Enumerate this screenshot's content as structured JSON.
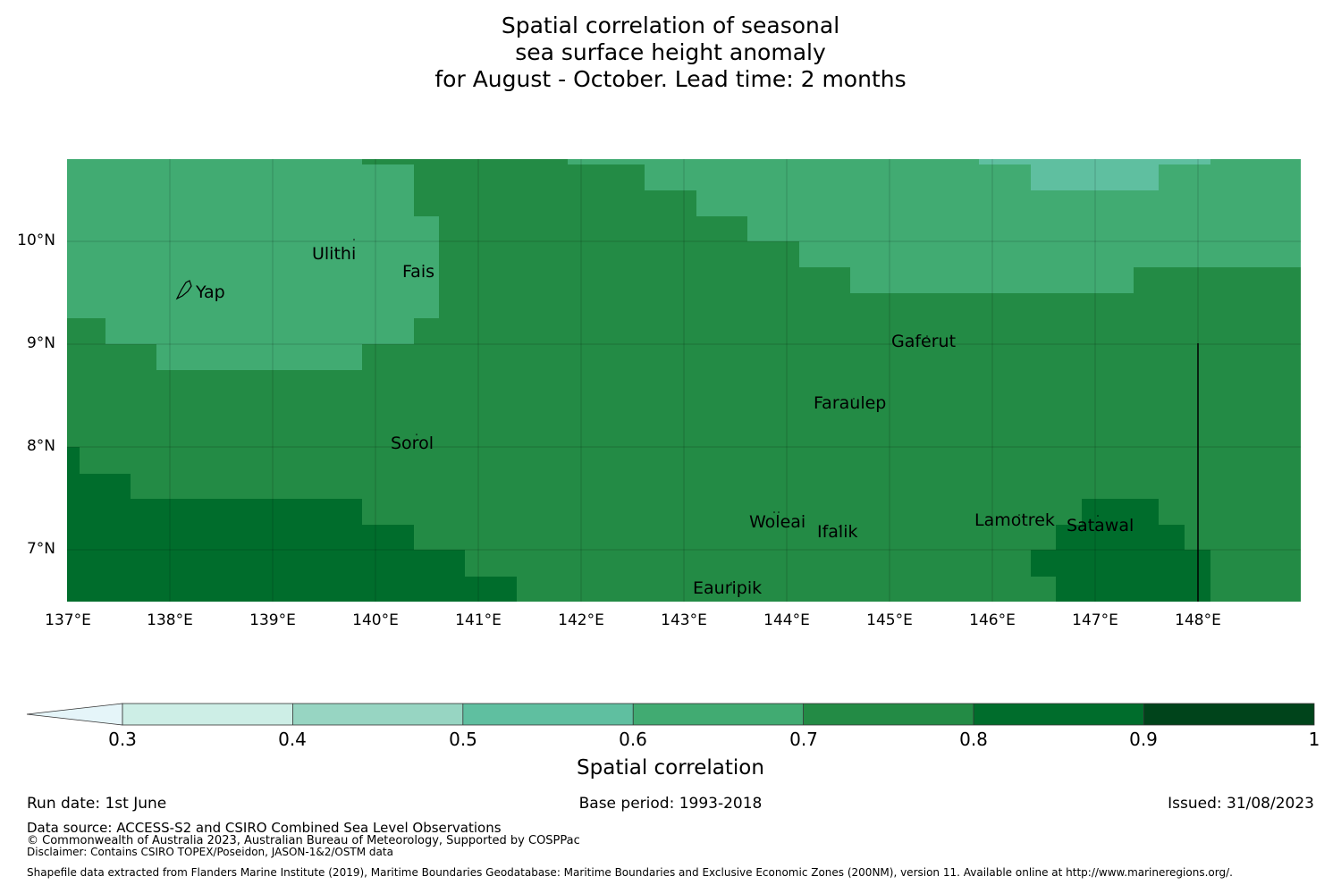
{
  "title": {
    "line1": "Spatial correlation of seasonal",
    "line2": "sea surface height anomaly",
    "line3": "for August - October. Lead time: 2 months"
  },
  "map": {
    "lat_ticks": [
      "10°N",
      "9°N",
      "8°N",
      "7°N"
    ],
    "lon_ticks": [
      "137°E",
      "138°E",
      "139°E",
      "140°E",
      "141°E",
      "142°E",
      "143°E",
      "144°E",
      "145°E",
      "146°E",
      "147°E",
      "148°E"
    ],
    "places": [
      "Ulithi",
      "Fais",
      "Yap",
      "Gaferut",
      "Faraulep",
      "Sorol",
      "Woleai",
      "Ifalik",
      "Lamotrek",
      "Satawal",
      "Eauripik"
    ],
    "colors": {
      "c05": "#5fbfa0",
      "c06": "#41ab72",
      "c07": "#238b45",
      "c08": "#006d2c",
      "c09": "#00441b"
    }
  },
  "colorbar": {
    "ticks": [
      "0.3",
      "0.4",
      "0.5",
      "0.6",
      "0.7",
      "0.8",
      "0.9",
      "1"
    ],
    "colors": [
      "#cdeee6",
      "#97d5c2",
      "#5fbfa0",
      "#41ab72",
      "#238b45",
      "#006d2c",
      "#00441b"
    ],
    "extend_color": "#e5f5f9",
    "label": "Spatial correlation"
  },
  "footer": {
    "run_date": "Run date: 1st June",
    "base_period": "Base period: 1993-2018",
    "issued": "Issued: 31/08/2023",
    "data_source": "Data source: ACCESS-S2 and CSIRO Combined Sea Level Observations",
    "copyright": "© Commonwealth of Australia 2023, Australian Bureau of Meteorology, Supported by COSPPac",
    "disclaimer": "Disclaimer: Contains CSIRO TOPEX/Poseidon, JASON-1&2/OSTM data",
    "shapefile": "Shapefile data extracted from Flanders Marine Institute (2019), Maritime Boundaries Geodatabase: Maritime Boundaries and Exclusive Economic Zones (200NM), version 11. Available online at http://www.marineregions.org/."
  }
}
